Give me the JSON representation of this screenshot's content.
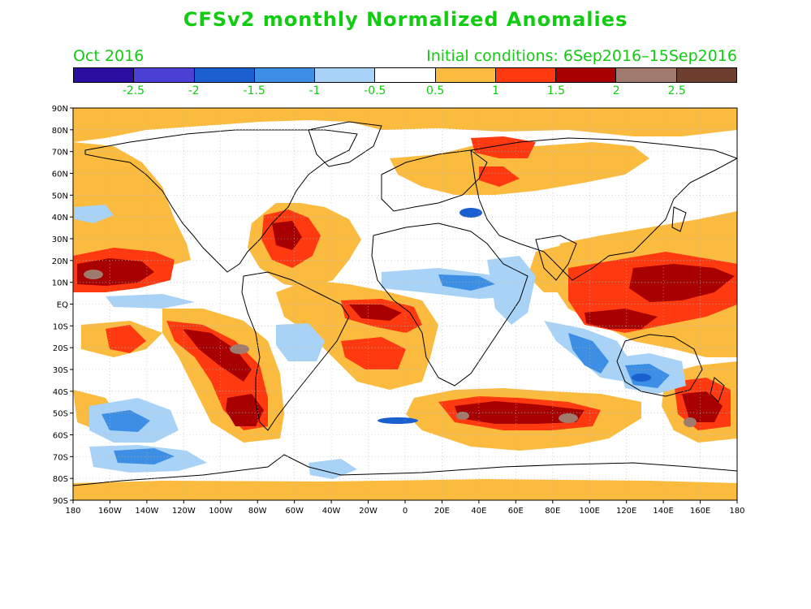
{
  "title": "CFSv2 monthly Normalized Anomalies",
  "month": "Oct 2016",
  "initial_conditions": "Initial conditions: 6Sep2016–15Sep2016",
  "legend": {
    "colors": [
      "#2a0fa0",
      "#4b3fd4",
      "#1a5fd0",
      "#3d8fe6",
      "#a9d3f6",
      "#ffffff",
      "#fbbb3e",
      "#ff3a10",
      "#a80000",
      "#a07a6c",
      "#6e3e2e"
    ],
    "labels": [
      "-2.5",
      "-2",
      "-1.5",
      "-1",
      "-0.5",
      "0.5",
      "1",
      "1.5",
      "2",
      "2.5"
    ]
  },
  "axes": {
    "x_labels": [
      "180",
      "160W",
      "140W",
      "120W",
      "100W",
      "80W",
      "60W",
      "40W",
      "20W",
      "0",
      "20E",
      "40E",
      "60E",
      "80E",
      "100E",
      "120E",
      "140E",
      "160E",
      "180"
    ],
    "y_labels": [
      "90N",
      "80N",
      "70N",
      "60N",
      "50N",
      "40N",
      "30N",
      "20N",
      "10N",
      "EQ",
      "10S",
      "20S",
      "30S",
      "40S",
      "50S",
      "60S",
      "70S",
      "80S",
      "90S"
    ]
  },
  "anomaly_regions": [
    {
      "level": "1",
      "color": "#fbbb3e"
    },
    {
      "level": "1.5",
      "color": "#ff3a10"
    },
    {
      "level": "2",
      "color": "#a80000"
    },
    {
      "level": "2.5",
      "color": "#a07a6c"
    },
    {
      "level": "-0.5",
      "color": "#a9d3f6"
    },
    {
      "level": "-1",
      "color": "#3d8fe6"
    },
    {
      "level": "-1.5",
      "color": "#1a5fd0"
    }
  ]
}
